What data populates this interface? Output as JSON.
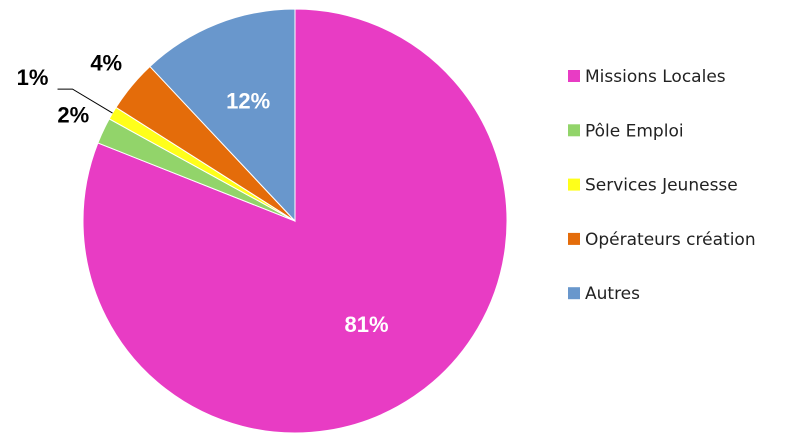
{
  "chart_data": {
    "type": "pie",
    "categories": [
      "Missions Locales",
      "Pôle Emploi",
      "Services Jeunesse",
      "Opérateurs création",
      "Autres"
    ],
    "values": [
      81,
      2,
      1,
      4,
      12
    ],
    "value_labels": [
      "81%",
      "2%",
      "1%",
      "4%",
      "12%"
    ],
    "colors": [
      "#e83cc4",
      "#92d46a",
      "#ffff1a",
      "#e46c0a",
      "#6997cc"
    ],
    "legend": "right"
  }
}
